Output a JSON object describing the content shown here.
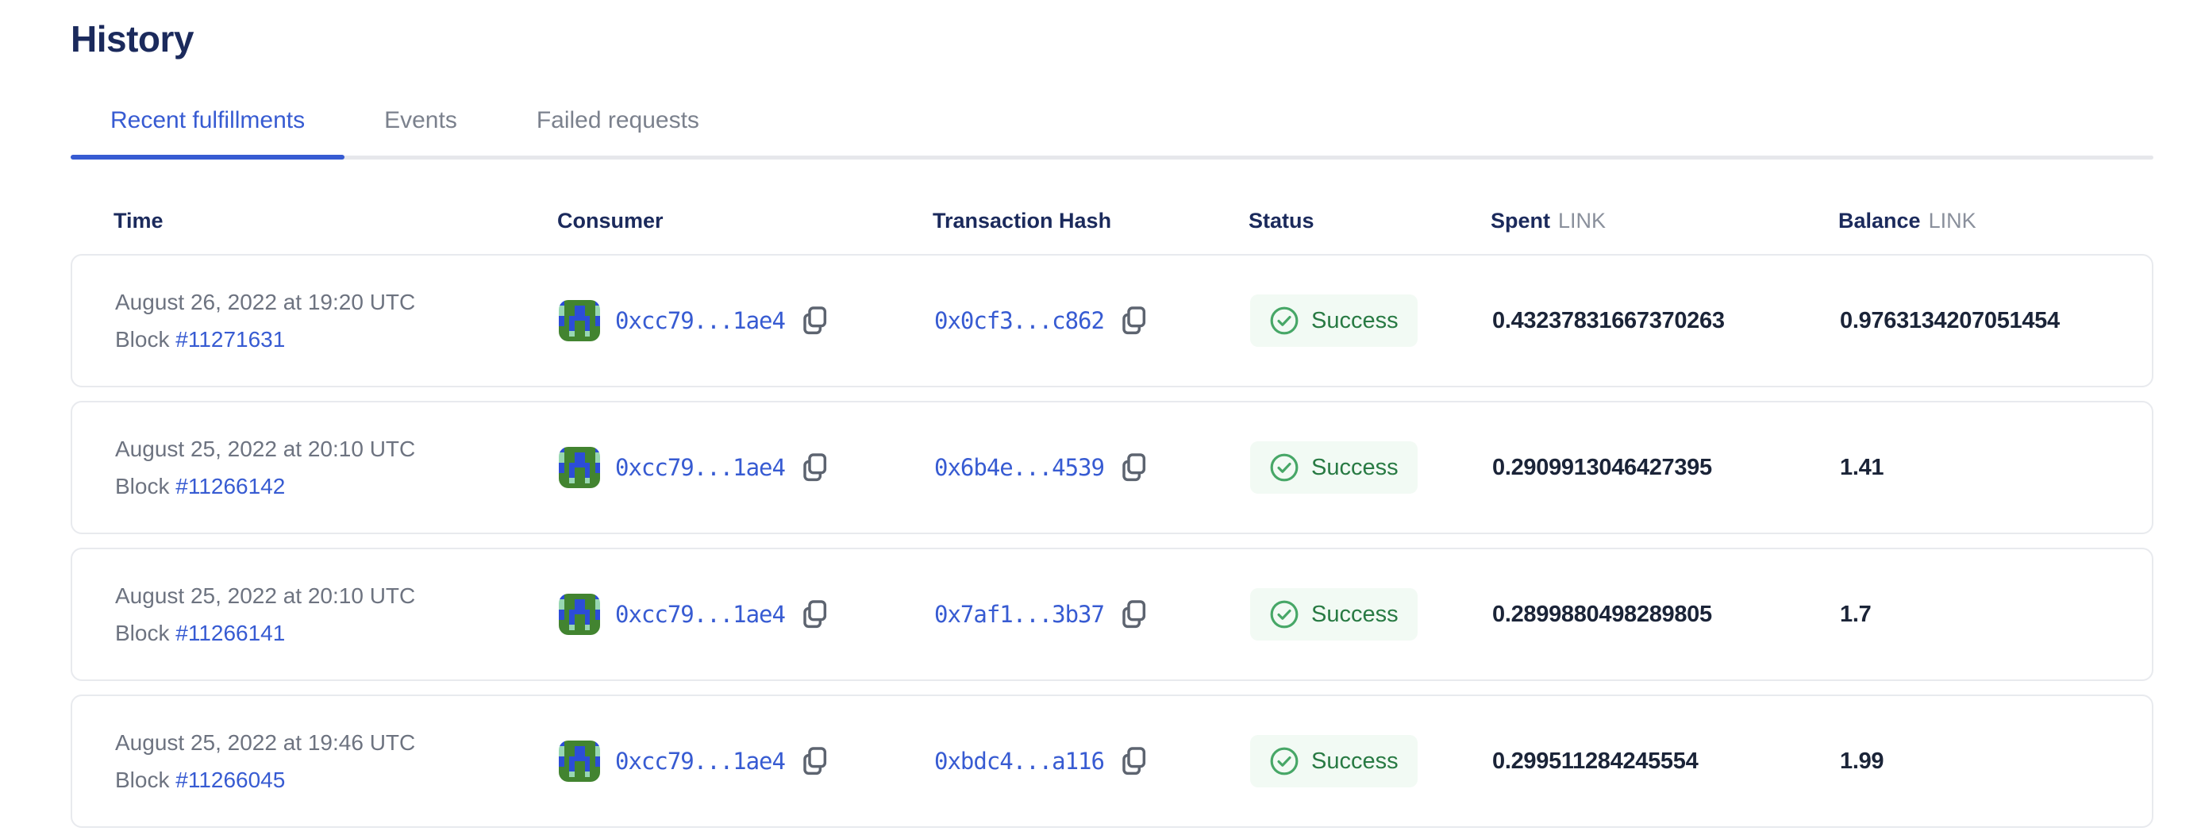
{
  "page": {
    "title": "History"
  },
  "tabs": [
    {
      "label": "Recent fulfillments",
      "slug": "recent-fulfillments",
      "active": true
    },
    {
      "label": "Events",
      "slug": "events",
      "active": false
    },
    {
      "label": "Failed requests",
      "slug": "failed-requests",
      "active": false
    }
  ],
  "table": {
    "headers": {
      "time": "Time",
      "consumer": "Consumer",
      "transaction_hash": "Transaction Hash",
      "status": "Status",
      "spent": "Spent",
      "balance": "Balance",
      "unit": "LINK"
    },
    "rows": [
      {
        "date": "August 26, 2022 at 19:20 UTC",
        "block_label": "Block",
        "block": "#11271631",
        "consumer": "0xcc79...1ae4",
        "tx": "0x0cf3...c862",
        "status": "Success",
        "spent": "0.43237831667370263",
        "balance": "0.9763134207051454"
      },
      {
        "date": "August 25, 2022 at 20:10 UTC",
        "block_label": "Block",
        "block": "#11266142",
        "consumer": "0xcc79...1ae4",
        "tx": "0x6b4e...4539",
        "status": "Success",
        "spent": "0.2909913046427395",
        "balance": "1.41"
      },
      {
        "date": "August 25, 2022 at 20:10 UTC",
        "block_label": "Block",
        "block": "#11266141",
        "consumer": "0xcc79...1ae4",
        "tx": "0x7af1...3b37",
        "status": "Success",
        "spent": "0.2899880498289805",
        "balance": "1.7"
      },
      {
        "date": "August 25, 2022 at 19:46 UTC",
        "block_label": "Block",
        "block": "#11266045",
        "consumer": "0xcc79...1ae4",
        "tx": "0xbdc4...a116",
        "status": "Success",
        "spent": "0.299511284245554",
        "balance": "1.99"
      }
    ]
  },
  "identicon": {
    "colors": {
      "g": "#428430",
      "b": "#2c4dd8",
      "t": "#98d7b2"
    },
    "pattern": [
      "bggggggb",
      "tggbbggt",
      "tggbbggt",
      "bgbbbbgb",
      "bgbggbgb",
      "ggbggbgg",
      "ggtggtgg",
      "gggggggg"
    ]
  },
  "colors": {
    "navy": "#1b2a5c",
    "ink": "#1b2438",
    "accent": "#375bd2",
    "gray-text": "#6d7380",
    "gray-light": "#8a909c",
    "tab-inactive": "#7b818d",
    "border": "#e8eaee",
    "rail": "#e6e7eb",
    "green-icon": "#47a767",
    "green-text": "#287a43",
    "badge-bg": "#f2faf4",
    "icon-gray": "#5d6470"
  }
}
